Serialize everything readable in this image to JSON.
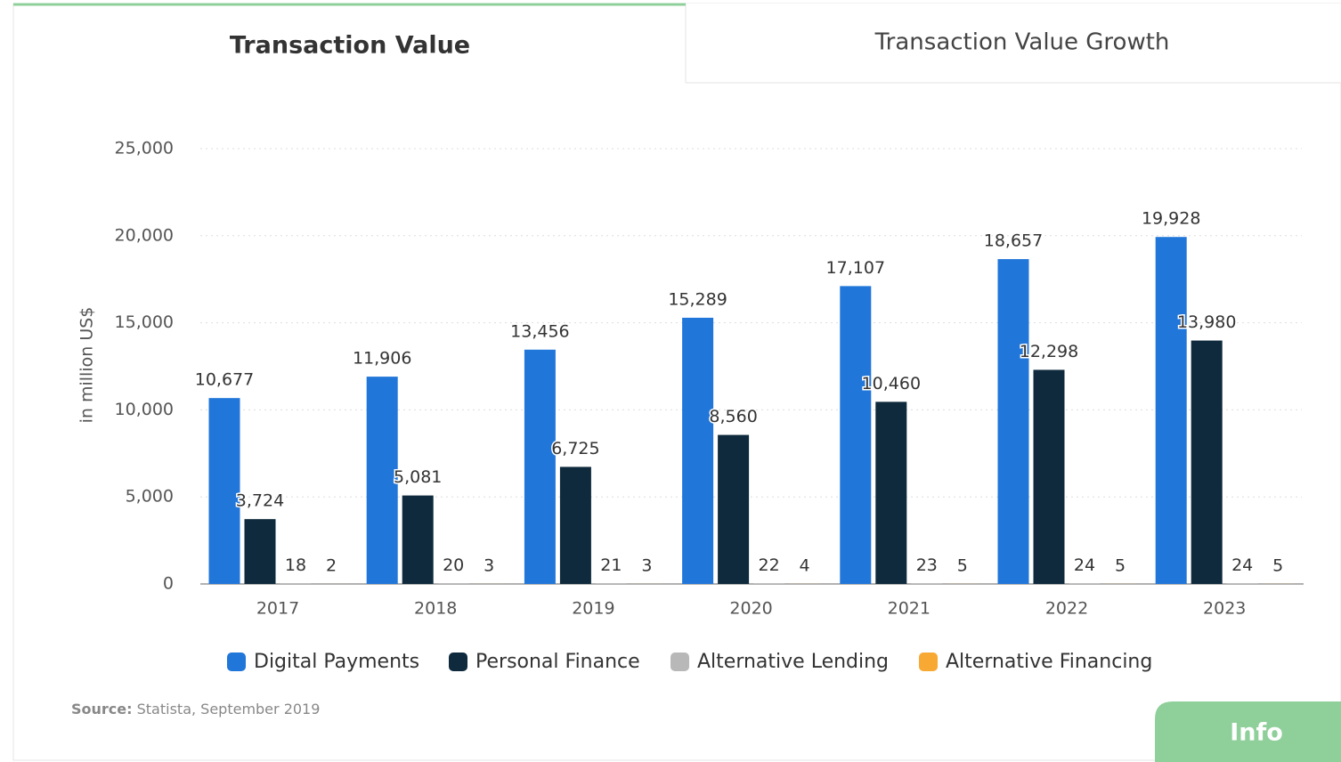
{
  "tabs": [
    "Transaction Value",
    "Transaction Value Growth"
  ],
  "chart_data": {
    "type": "bar",
    "y_label": "in million US$",
    "categories": [
      "2017",
      "2018",
      "2019",
      "2020",
      "2021",
      "2022",
      "2023"
    ],
    "series": [
      {
        "name": "Digital Payments",
        "color": "#2176d9",
        "values": [
          10677,
          11906,
          13456,
          15289,
          17107,
          18657,
          19928
        ],
        "value_labels": [
          "10,677",
          "11,906",
          "13,456",
          "15,289",
          "17,107",
          "18,657",
          "19,928"
        ]
      },
      {
        "name": "Personal Finance",
        "color": "#0e2a3c",
        "values": [
          3724,
          5081,
          6725,
          8560,
          10460,
          12298,
          13980
        ],
        "value_labels": [
          "3,724",
          "5,081",
          "6,725",
          "8,560",
          "10,460",
          "12,298",
          "13,980"
        ]
      },
      {
        "name": "Alternative Lending",
        "color": "#b8b8b8",
        "values": [
          18,
          20,
          21,
          22,
          23,
          24,
          24
        ]
      },
      {
        "name": "Alternative Financing",
        "color": "#f7a934",
        "values": [
          2,
          3,
          3,
          4,
          5,
          5,
          5
        ]
      }
    ],
    "ylim": [
      0,
      25000
    ],
    "yticks": [
      0,
      {
        "value": 5000,
        "label": "5,000"
      },
      {
        "value": 10000,
        "label": "10,000"
      },
      {
        "value": 15000,
        "label": "15,000"
      },
      {
        "value": 20000,
        "label": "20,000"
      },
      {
        "value": 25000,
        "label": "25,000"
      }
    ],
    "grid": true,
    "legend": "bottom"
  },
  "source": {
    "label": "Source:",
    "text": "Statista, September 2019"
  },
  "button": "Info"
}
